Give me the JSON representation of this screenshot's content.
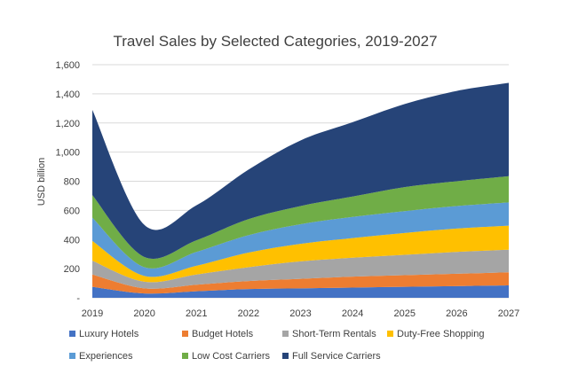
{
  "chart_data": {
    "type": "area",
    "stacked": true,
    "title": "Travel Sales by Selected Categories, 2019-2027",
    "xlabel": "",
    "ylabel": "USD billion",
    "x": [
      "2019",
      "2020",
      "2021",
      "2022",
      "2023",
      "2024",
      "2025",
      "2026",
      "2027"
    ],
    "ylim": [
      0,
      1600
    ],
    "yticks": [
      0,
      200,
      400,
      600,
      800,
      1000,
      1200,
      1400,
      1600
    ],
    "ytick_labels": [
      "-",
      "200",
      "400",
      "600",
      "800",
      "1,000",
      "1,200",
      "1,400",
      "1,600"
    ],
    "grid": true,
    "legend_position": "bottom",
    "series": [
      {
        "name": "Luxury Hotels",
        "color": "#4472C4",
        "values": [
          75,
          30,
          45,
          60,
          65,
          70,
          75,
          80,
          85
        ]
      },
      {
        "name": "Budget Hotels",
        "color": "#ED7D31",
        "values": [
          85,
          35,
          45,
          55,
          65,
          75,
          80,
          85,
          90
        ]
      },
      {
        "name": "Short-Term Rentals",
        "color": "#A5A5A5",
        "values": [
          95,
          45,
          70,
          95,
          120,
          130,
          140,
          150,
          155
        ]
      },
      {
        "name": "Duty-Free Shopping",
        "color": "#FFC000",
        "values": [
          135,
          40,
          60,
          100,
          120,
          135,
          150,
          160,
          165
        ]
      },
      {
        "name": "Experiences",
        "color": "#5B9BD5",
        "values": [
          160,
          60,
          95,
          120,
          135,
          145,
          150,
          155,
          160
        ]
      },
      {
        "name": "Low Cost Carriers",
        "color": "#70AD47",
        "values": [
          155,
          70,
          80,
          110,
          125,
          140,
          165,
          170,
          180
        ]
      },
      {
        "name": "Full Service Carriers",
        "color": "#264478",
        "values": [
          585,
          220,
          240,
          340,
          450,
          510,
          570,
          620,
          640
        ]
      }
    ]
  }
}
